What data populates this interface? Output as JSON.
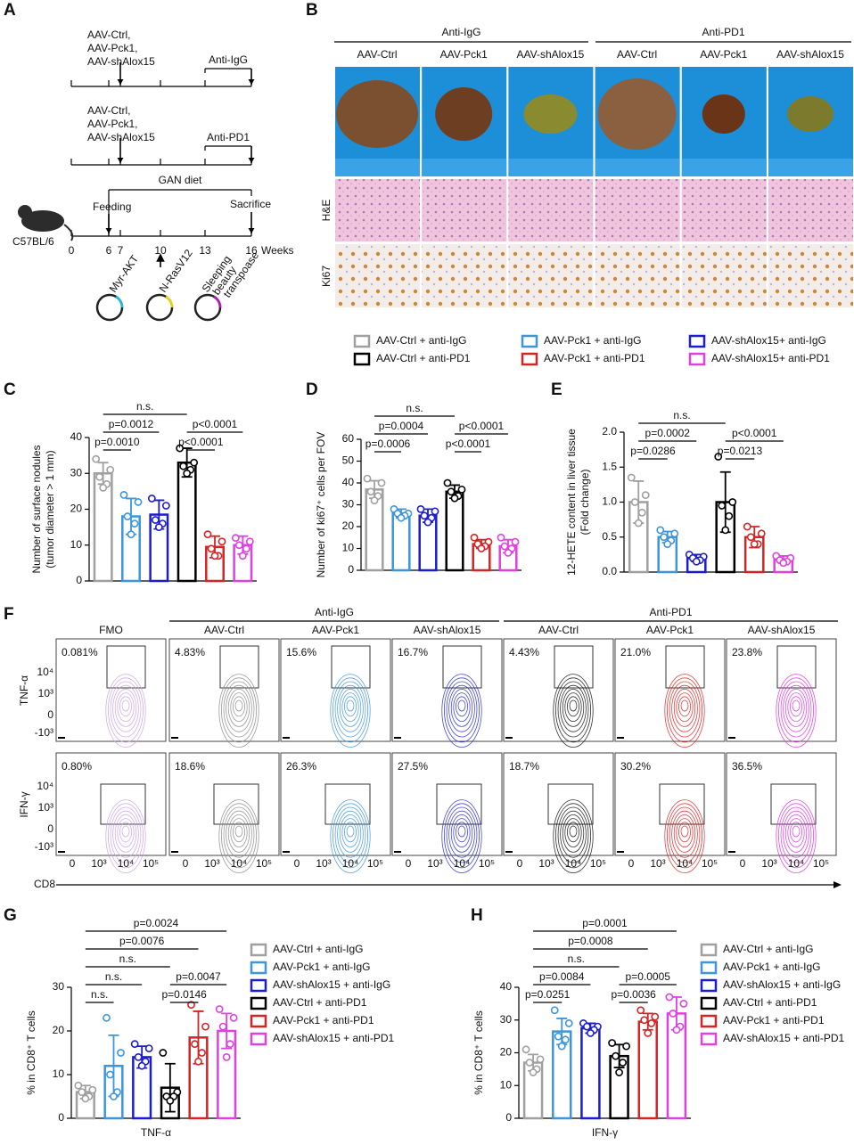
{
  "panel_letters": [
    "A",
    "B",
    "C",
    "D",
    "E",
    "F",
    "G",
    "H"
  ],
  "schematic": {
    "injections": [
      "AAV-Ctrl,",
      "AAV-Pck1,",
      "AAV-shAlox15"
    ],
    "treatments": [
      "Anti-IgG",
      "Anti-PD1"
    ],
    "diet": "GAN diet",
    "feeding": "Feeding",
    "sacrifice": "Sacrifice",
    "strain": "C57BL/6",
    "weeks": [
      "0",
      "6",
      "7",
      "10",
      "13",
      "16",
      "Weeks"
    ],
    "plasmids": [
      "Myr-AKT",
      "N-RasV12",
      "Sleeping",
      "beauty",
      "transpoase"
    ]
  },
  "liver_images": {
    "groups": [
      "Anti-IgG",
      "Anti-PD1"
    ],
    "columns": [
      "AAV-Ctrl",
      "AAV-Pck1",
      "AAV-shAlox15",
      "AAV-Ctrl",
      "AAV-Pck1",
      "AAV-shAlox15"
    ],
    "rows": [
      "H&E",
      "Ki67"
    ]
  },
  "legend": [
    {
      "name": "AAV-Ctrl + anti-IgG",
      "color": "#a0a0a0"
    },
    {
      "name": "AAV-Pck1 + anti-IgG",
      "color": "#3d95dc"
    },
    {
      "name": "AAV-shAlox15+ anti-IgG",
      "color": "#1c1cd0"
    },
    {
      "name": "AAV-Ctrl + anti-PD1",
      "color": "#000000"
    },
    {
      "name": "AAV-Pck1 + anti-PD1",
      "color": "#d42424"
    },
    {
      "name": "AAV-shAlox15+ anti-PD1",
      "color": "#e040e0"
    }
  ],
  "flow": {
    "groups": [
      "Anti-IgG",
      "Anti-PD1"
    ],
    "columns": [
      "FMO",
      "AAV-Ctrl",
      "AAV-Pck1",
      "AAV-shAlox15",
      "AAV-Ctrl",
      "AAV-Pck1",
      "AAV-shAlox15"
    ],
    "colors": [
      "#c9a2ea",
      "#8a8a8a",
      "#3d95dc",
      "#2a2ad0",
      "#111111",
      "#e02020",
      "#e030e0"
    ],
    "rows": [
      "TNF-α",
      "IFN-γ"
    ],
    "percentages": [
      [
        "0.081%",
        "4.83%",
        "15.6%",
        "16.7%",
        "4.43%",
        "21.0%",
        "23.8%"
      ],
      [
        "0.80%",
        "18.6%",
        "26.3%",
        "27.5%",
        "18.7%",
        "30.2%",
        "36.5%"
      ]
    ],
    "y_ticks": [
      "10⁴",
      "10³",
      "0",
      "-10³"
    ],
    "x_ticks": [
      "0",
      "10³",
      "10⁴",
      "10⁵"
    ],
    "x_label": "CD8"
  },
  "chart_data": [
    {
      "type": "bar",
      "ylabel": [
        "Number of surface nodules",
        "(tumor diameter > 1 mm)"
      ],
      "ylim": [
        0,
        40
      ],
      "yticks": [
        0,
        10,
        20,
        30,
        40
      ],
      "series": [
        {
          "color": "#a0a0a0",
          "values": [
            30
          ],
          "errors": [
            3
          ],
          "points": [
            34,
            31,
            29,
            27,
            26
          ]
        },
        {
          "color": "#3d95dc",
          "values": [
            18
          ],
          "errors": [
            5
          ],
          "points": [
            24,
            22,
            18,
            16,
            13
          ]
        },
        {
          "color": "#1c1cd0",
          "values": [
            18.5
          ],
          "errors": [
            4
          ],
          "points": [
            23,
            21,
            17,
            16,
            15
          ]
        },
        {
          "color": "#000000",
          "values": [
            33
          ],
          "errors": [
            4
          ],
          "points": [
            37,
            33,
            32,
            31,
            30
          ]
        },
        {
          "color": "#d42424",
          "values": [
            9.5
          ],
          "errors": [
            3
          ],
          "points": [
            13,
            11,
            9,
            7,
            7
          ]
        },
        {
          "color": "#e040e0",
          "values": [
            10
          ],
          "errors": [
            2.5
          ],
          "points": [
            12,
            11,
            10,
            9,
            7
          ]
        }
      ],
      "comparisons": [
        {
          "between": [
            0,
            1
          ],
          "label": "p=0.0010"
        },
        {
          "between": [
            0,
            2
          ],
          "label": "p=0.0012"
        },
        {
          "between": [
            3,
            4
          ],
          "label": "p<0.0001"
        },
        {
          "between": [
            3,
            5
          ],
          "label": "p<0.0001"
        },
        {
          "between": [
            0,
            3
          ],
          "label": "n.s."
        }
      ]
    },
    {
      "type": "bar",
      "ylabel": [
        "Number of ki67⁺ cells per FOV"
      ],
      "ylim": [
        0,
        60
      ],
      "yticks": [
        0,
        10,
        20,
        30,
        40,
        50,
        60
      ],
      "series": [
        {
          "color": "#a0a0a0",
          "values": [
            37
          ],
          "errors": [
            4
          ],
          "points": [
            42,
            40,
            36,
            34,
            32
          ]
        },
        {
          "color": "#3d95dc",
          "values": [
            26
          ],
          "errors": [
            2
          ],
          "points": [
            28,
            26,
            26,
            25,
            24
          ]
        },
        {
          "color": "#1c1cd0",
          "values": [
            25
          ],
          "errors": [
            3
          ],
          "points": [
            28,
            27,
            25,
            24,
            22
          ]
        },
        {
          "color": "#000000",
          "values": [
            36
          ],
          "errors": [
            3
          ],
          "points": [
            40,
            37,
            36,
            34,
            33
          ]
        },
        {
          "color": "#d42424",
          "values": [
            12
          ],
          "errors": [
            2
          ],
          "points": [
            15,
            13,
            12,
            11,
            10
          ]
        },
        {
          "color": "#e040e0",
          "values": [
            11
          ],
          "errors": [
            3
          ],
          "points": [
            15,
            13,
            11,
            10,
            8
          ]
        }
      ],
      "comparisons": [
        {
          "between": [
            0,
            1
          ],
          "label": "p=0.0006"
        },
        {
          "between": [
            0,
            2
          ],
          "label": "p=0.0004"
        },
        {
          "between": [
            3,
            4
          ],
          "label": "p<0.0001"
        },
        {
          "between": [
            3,
            5
          ],
          "label": "p<0.0001"
        },
        {
          "between": [
            0,
            3
          ],
          "label": "n.s."
        }
      ]
    },
    {
      "type": "bar",
      "ylabel": [
        "12-HETE content in liver tissue",
        "(Fold change)"
      ],
      "ylim": [
        0,
        2
      ],
      "yticks": [
        {
          "value": 0,
          "label": "0.0"
        },
        0.5,
        {
          "value": 1,
          "label": "1.0"
        },
        1.5,
        {
          "value": 2,
          "label": "2.0"
        }
      ],
      "series": [
        {
          "color": "#a0a0a0",
          "values": [
            1.0
          ],
          "errors": [
            0.3
          ],
          "points": [
            1.35,
            1.1,
            1.0,
            0.85,
            0.7
          ]
        },
        {
          "color": "#3d95dc",
          "values": [
            0.5
          ],
          "errors": [
            0.08
          ],
          "points": [
            0.6,
            0.55,
            0.5,
            0.45,
            0.4
          ]
        },
        {
          "color": "#1c1cd0",
          "values": [
            0.2
          ],
          "errors": [
            0.05
          ],
          "points": [
            0.25,
            0.22,
            0.2,
            0.17,
            0.15
          ]
        },
        {
          "color": "#000000",
          "values": [
            1.0
          ],
          "errors": [
            0.43
          ],
          "points": [
            1.65,
            1.0,
            0.95,
            0.8,
            0.6
          ]
        },
        {
          "color": "#d42424",
          "values": [
            0.5
          ],
          "errors": [
            0.15
          ],
          "points": [
            0.65,
            0.55,
            0.5,
            0.4,
            0.4
          ]
        },
        {
          "color": "#e040e0",
          "values": [
            0.18
          ],
          "errors": [
            0.05
          ],
          "points": [
            0.23,
            0.2,
            0.17,
            0.15,
            0.13
          ]
        }
      ],
      "comparisons": [
        {
          "between": [
            0,
            1
          ],
          "label": "p=0.0286"
        },
        {
          "between": [
            0,
            2
          ],
          "label": "p=0.0002"
        },
        {
          "between": [
            3,
            4
          ],
          "label": "p=0.0213"
        },
        {
          "between": [
            3,
            5
          ],
          "label": "p<0.0001"
        },
        {
          "between": [
            0,
            3
          ],
          "label": "n.s."
        }
      ]
    },
    {
      "type": "bar",
      "ylabel": [
        "% in CD8⁺ T cells"
      ],
      "xlabel": "TNF-α",
      "ylim": [
        0,
        30
      ],
      "yticks": [
        0,
        10,
        20,
        30
      ],
      "series": [
        {
          "name": "AAV-Ctrl + anti-IgG",
          "color": "#a0a0a0",
          "values": [
            6
          ],
          "errors": [
            1.5
          ],
          "points": [
            7.5,
            6.5,
            6,
            5,
            4.5
          ]
        },
        {
          "name": "AAV-Pck1 + anti-IgG",
          "color": "#3d95dc",
          "values": [
            12
          ],
          "errors": [
            7
          ],
          "points": [
            23,
            15,
            10,
            6,
            5
          ]
        },
        {
          "name": "AAV-shAlox15 + anti-IgG",
          "color": "#1c1cd0",
          "values": [
            14
          ],
          "errors": [
            2.5
          ],
          "points": [
            17,
            16,
            14,
            13,
            12
          ]
        },
        {
          "name": "AAV-Ctrl + anti-PD1",
          "color": "#000000",
          "values": [
            7
          ],
          "errors": [
            5.5
          ],
          "points": [
            15,
            6,
            5,
            5,
            4
          ]
        },
        {
          "name": "AAV-Pck1 + anti-PD1",
          "color": "#d42424",
          "values": [
            18.5
          ],
          "errors": [
            6
          ],
          "points": [
            26,
            21,
            17,
            15,
            13
          ]
        },
        {
          "name": "AAV-shAlox15 + anti-PD1",
          "color": "#e040e0",
          "values": [
            20
          ],
          "errors": [
            4
          ],
          "points": [
            25,
            23,
            21,
            17,
            14
          ]
        }
      ],
      "comparisons": [
        {
          "between": [
            0,
            1
          ],
          "label": "n.s."
        },
        {
          "between": [
            3,
            4
          ],
          "label": "p=0.0146"
        },
        {
          "between": [
            0,
            2
          ],
          "label": "n.s."
        },
        {
          "between": [
            3,
            5
          ],
          "label": "p=0.0047"
        },
        {
          "between": [
            0,
            3
          ],
          "label": "n.s."
        },
        {
          "between": [
            0,
            4
          ],
          "label": "p=0.0076"
        },
        {
          "between": [
            0,
            5
          ],
          "label": "p=0.0024"
        }
      ]
    },
    {
      "type": "bar",
      "ylabel": [
        "% in CD8⁺ T cells"
      ],
      "xlabel": "IFN-γ",
      "ylim": [
        0,
        40
      ],
      "yticks": [
        0,
        10,
        20,
        30,
        40
      ],
      "series": [
        {
          "name": "AAV-Ctrl + anti-IgG",
          "color": "#a0a0a0",
          "values": [
            17
          ],
          "errors": [
            2.5
          ],
          "points": [
            21,
            18,
            17,
            15,
            14
          ]
        },
        {
          "name": "AAV-Pck1 + anti-IgG",
          "color": "#3d95dc",
          "values": [
            26.5
          ],
          "errors": [
            4
          ],
          "points": [
            33,
            29,
            25,
            24,
            22
          ]
        },
        {
          "name": "AAV-shAlox15 + anti-IgG",
          "color": "#1c1cd0",
          "values": [
            27.5
          ],
          "errors": [
            1.5
          ],
          "points": [
            29,
            28,
            28,
            27,
            26
          ]
        },
        {
          "name": "AAV-Ctrl + anti-PD1",
          "color": "#000000",
          "values": [
            19
          ],
          "errors": [
            3.5
          ],
          "points": [
            23,
            22,
            19,
            17,
            14
          ]
        },
        {
          "name": "AAV-Pck1 + anti-PD1",
          "color": "#d42424",
          "values": [
            29.5
          ],
          "errors": [
            2.5
          ],
          "points": [
            33,
            31,
            30,
            29,
            26
          ]
        },
        {
          "name": "AAV-shAlox15 + anti-PD1",
          "color": "#e040e0",
          "values": [
            32
          ],
          "errors": [
            5
          ],
          "points": [
            37,
            35,
            32,
            28,
            27
          ]
        }
      ],
      "comparisons": [
        {
          "between": [
            0,
            1
          ],
          "label": "p=0.0251"
        },
        {
          "between": [
            3,
            4
          ],
          "label": "p=0.0036"
        },
        {
          "between": [
            0,
            2
          ],
          "label": "p=0.0084"
        },
        {
          "between": [
            3,
            5
          ],
          "label": "p=0.0005"
        },
        {
          "between": [
            0,
            3
          ],
          "label": "n.s."
        },
        {
          "between": [
            0,
            4
          ],
          "label": "p=0.0008"
        },
        {
          "between": [
            0,
            5
          ],
          "label": "p=0.0001"
        }
      ]
    }
  ]
}
